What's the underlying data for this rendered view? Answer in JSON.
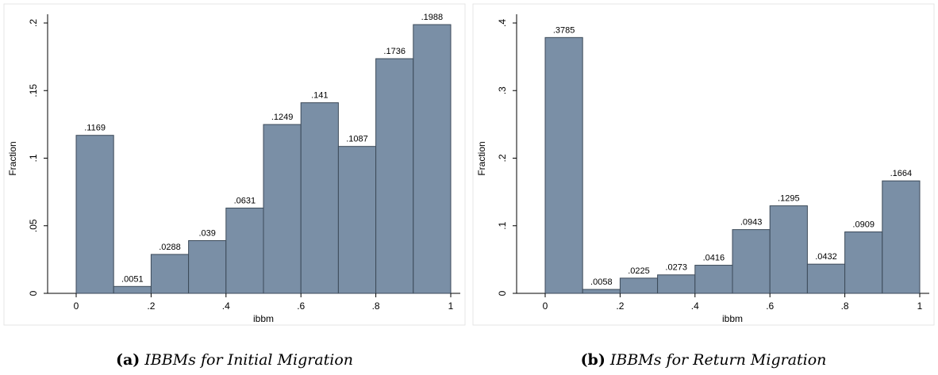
{
  "chart_data": [
    {
      "type": "bar",
      "caption_tag": "(a)",
      "caption_text": "IBBMs for Initial Migration",
      "xlabel": "ibbm",
      "ylabel": "Fraction",
      "xlim": [
        0,
        1
      ],
      "ylim": [
        0,
        0.2
      ],
      "xticks": [
        "0",
        ".2",
        ".4",
        ".6",
        ".8",
        "1"
      ],
      "xtick_values": [
        0,
        0.2,
        0.4,
        0.6,
        0.8,
        1
      ],
      "yticks": [
        "0",
        ".05",
        ".1",
        ".15",
        ".2"
      ],
      "ytick_values": [
        0,
        0.05,
        0.1,
        0.15,
        0.2
      ],
      "bin_width": 0.1,
      "bins": [
        0,
        0.1,
        0.2,
        0.3,
        0.4,
        0.5,
        0.6,
        0.7,
        0.8,
        0.9
      ],
      "values": [
        0.1169,
        0.0051,
        0.0288,
        0.039,
        0.0631,
        0.1249,
        0.141,
        0.1087,
        0.1736,
        0.1988
      ],
      "labels": [
        ".1169",
        ".0051",
        ".0288",
        ".039",
        ".0631",
        ".1249",
        ".141",
        ".1087",
        ".1736",
        ".1988"
      ]
    },
    {
      "type": "bar",
      "caption_tag": "(b)",
      "caption_text": "IBBMs for Return Migration",
      "xlabel": "ibbm",
      "ylabel": "Fraction",
      "xlim": [
        0,
        1
      ],
      "ylim": [
        0,
        0.4
      ],
      "xticks": [
        "0",
        ".2",
        ".4",
        ".6",
        ".8",
        "1"
      ],
      "xtick_values": [
        0,
        0.2,
        0.4,
        0.6,
        0.8,
        1
      ],
      "yticks": [
        "0",
        ".1",
        ".2",
        ".3",
        ".4"
      ],
      "ytick_values": [
        0,
        0.1,
        0.2,
        0.3,
        0.4
      ],
      "bin_width": 0.1,
      "bins": [
        0,
        0.1,
        0.2,
        0.3,
        0.4,
        0.5,
        0.6,
        0.7,
        0.8,
        0.9
      ],
      "values": [
        0.3785,
        0.0058,
        0.0225,
        0.0273,
        0.0416,
        0.0943,
        0.1295,
        0.0432,
        0.0909,
        0.1664
      ],
      "labels": [
        ".3785",
        ".0058",
        ".0225",
        ".0273",
        ".0416",
        ".0943",
        ".1295",
        ".0432",
        ".0909",
        ".1664"
      ]
    }
  ],
  "colors": {
    "bar_fill": "#7a8fa6",
    "bar_stroke": "#3c4a59"
  }
}
